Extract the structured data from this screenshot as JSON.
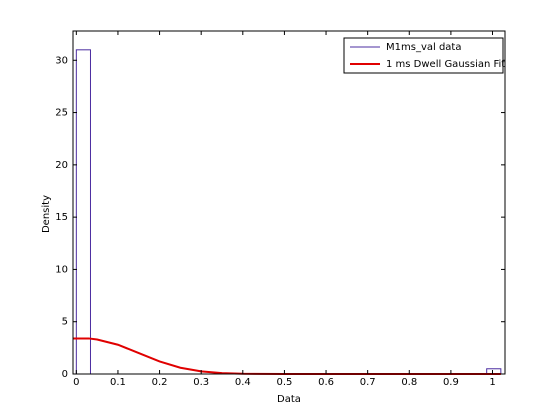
{
  "chart_data": {
    "type": "histogram",
    "xlabel": "Data",
    "ylabel": "Density",
    "bins": [
      0,
      0.034,
      0.068,
      0.102,
      0.136,
      0.17,
      0.204,
      0.238,
      0.272,
      0.306,
      0.34,
      0.374,
      0.408,
      0.442,
      0.476,
      0.51,
      0.544,
      0.578,
      0.612,
      0.646,
      0.68,
      0.714,
      0.748,
      0.782,
      0.816,
      0.85,
      0.884,
      0.918,
      0.952,
      0.986,
      1.02
    ],
    "series": [
      {
        "name": "M1ms_val data",
        "color": "#4b2ca0",
        "values": [
          31,
          0,
          0,
          0,
          0,
          0,
          0,
          0,
          0,
          0,
          0,
          0,
          0,
          0,
          0,
          0,
          0,
          0,
          0,
          0,
          0,
          0,
          0,
          0,
          0,
          0,
          0,
          0,
          0,
          0.5
        ]
      },
      {
        "name": "1 ms Dwell Gaussian Fit",
        "color": "#e00000",
        "type": "line",
        "x": [
          -0.008,
          0.03,
          0.05,
          0.1,
          0.15,
          0.2,
          0.25,
          0.3,
          0.35,
          0.4,
          0.5,
          1.02
        ],
        "values": [
          3.4,
          3.4,
          3.3,
          2.8,
          2.0,
          1.2,
          0.6,
          0.25,
          0.08,
          0.02,
          0,
          0
        ]
      }
    ],
    "xlim": [
      -0.008,
      1.03
    ],
    "ylim": [
      0,
      32.8
    ],
    "xticks": [
      0,
      0.1,
      0.2,
      0.3,
      0.4,
      0.5,
      0.6,
      0.7,
      0.8,
      0.9,
      1
    ],
    "yticks": [
      0,
      5,
      10,
      15,
      20,
      25,
      30
    ],
    "legend": "upper right"
  }
}
